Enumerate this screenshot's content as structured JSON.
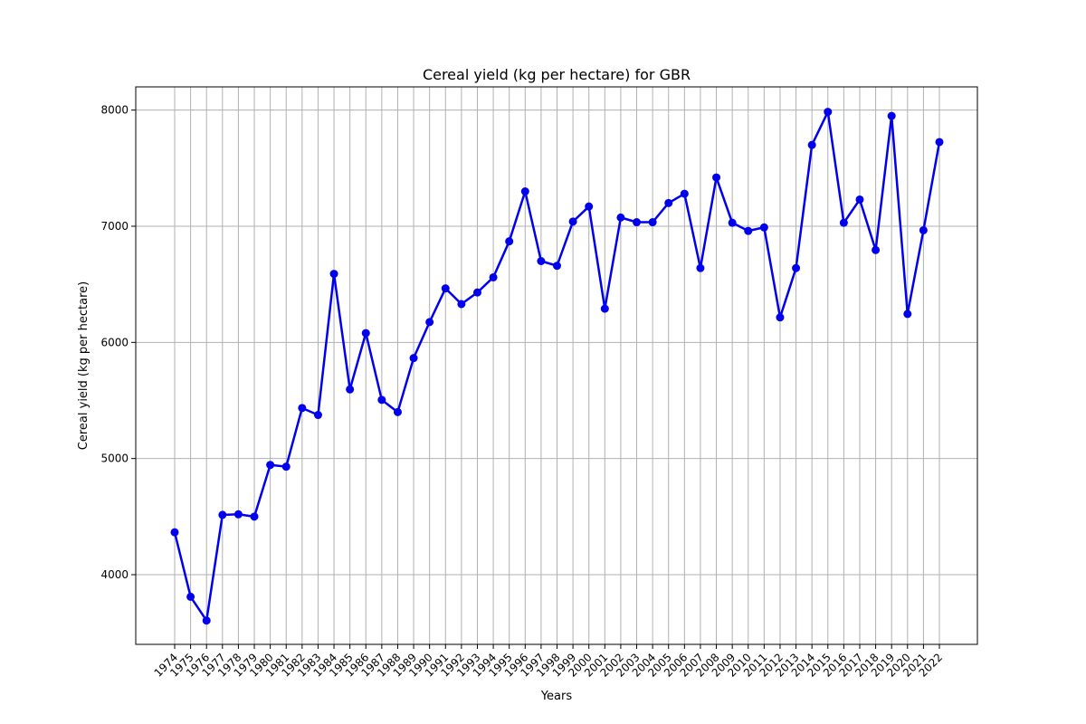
{
  "chart_data": {
    "type": "line",
    "title": "Cereal yield (kg per hectare) for GBR",
    "xlabel": "Years",
    "ylabel": "Cereal yield (kg per hectare)",
    "x": [
      "1974",
      "1975",
      "1976",
      "1977",
      "1978",
      "1979",
      "1980",
      "1981",
      "1982",
      "1983",
      "1984",
      "1985",
      "1986",
      "1987",
      "1988",
      "1989",
      "1990",
      "1991",
      "1992",
      "1993",
      "1994",
      "1995",
      "1996",
      "1997",
      "1998",
      "1999",
      "2000",
      "2001",
      "2002",
      "2003",
      "2004",
      "2005",
      "2006",
      "2007",
      "2008",
      "2009",
      "2010",
      "2011",
      "2012",
      "2013",
      "2014",
      "2015",
      "2016",
      "2017",
      "2018",
      "2019",
      "2020",
      "2021",
      "2022"
    ],
    "values": [
      4365,
      3810,
      3605,
      4515,
      4520,
      4500,
      4945,
      4930,
      5435,
      5375,
      6590,
      5595,
      6080,
      5505,
      5400,
      5865,
      6175,
      6465,
      6330,
      6430,
      6560,
      6870,
      7300,
      6700,
      6660,
      7040,
      7170,
      6290,
      7075,
      7035,
      7035,
      7200,
      7280,
      6640,
      7420,
      7030,
      6960,
      6990,
      6215,
      6640,
      7700,
      7985,
      7030,
      7230,
      6795,
      7950,
      6245,
      6965,
      7725
    ],
    "ylim": [
      3400,
      8200
    ],
    "yticks": [
      4000,
      5000,
      6000,
      7000,
      8000
    ],
    "grid": true,
    "color": "#0000ee",
    "marker": "circle"
  }
}
